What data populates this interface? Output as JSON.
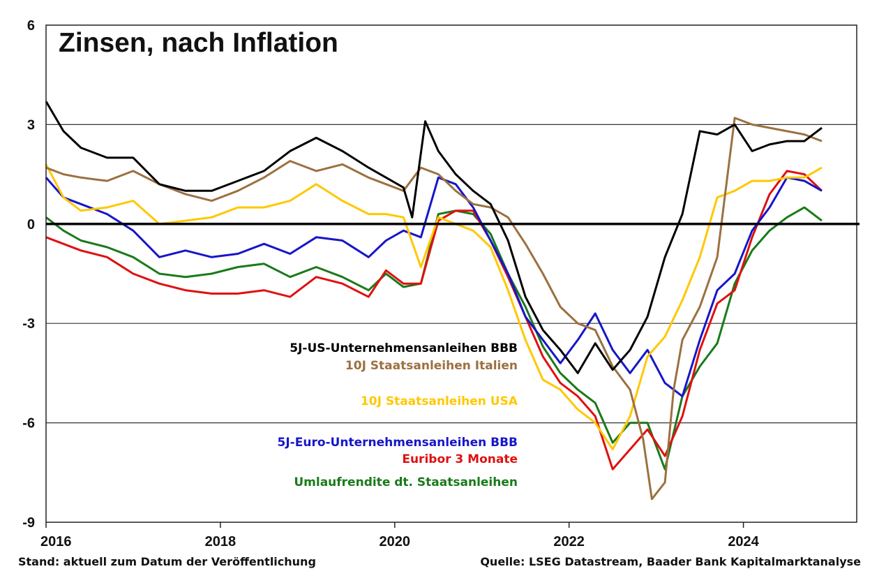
{
  "chart_data": {
    "type": "line",
    "title": "Zinsen, nach Inflation",
    "ylim": [
      -9,
      6
    ],
    "xlim": [
      2016,
      2025.3
    ],
    "yticks": [
      "6",
      "3",
      "0",
      "-3",
      "-6",
      "-9"
    ],
    "ytick_values": [
      6,
      3,
      0,
      -3,
      -6,
      -9
    ],
    "xticks": [
      "2016",
      "2018",
      "2020",
      "2022",
      "2024"
    ],
    "xtick_values": [
      2016,
      2018,
      2020,
      2022,
      2024
    ],
    "grid": "horizontal",
    "series": [
      {
        "name": "5J-US-Unternehmensanleihen BBB",
        "color": "#000000",
        "x": [
          2016.0,
          2016.2,
          2016.4,
          2016.7,
          2017.0,
          2017.3,
          2017.6,
          2017.9,
          2018.2,
          2018.5,
          2018.8,
          2019.1,
          2019.4,
          2019.7,
          2019.9,
          2020.1,
          2020.2,
          2020.35,
          2020.5,
          2020.7,
          2020.9,
          2021.1,
          2021.3,
          2021.5,
          2021.7,
          2021.9,
          2022.1,
          2022.3,
          2022.5,
          2022.7,
          2022.9,
          2023.1,
          2023.3,
          2023.5,
          2023.7,
          2023.9,
          2024.1,
          2024.3,
          2024.5,
          2024.7,
          2024.9
        ],
        "y": [
          3.7,
          2.8,
          2.3,
          2.0,
          2.0,
          1.2,
          1.0,
          1.0,
          1.3,
          1.6,
          2.2,
          2.6,
          2.2,
          1.7,
          1.4,
          1.1,
          0.2,
          3.1,
          2.2,
          1.5,
          1.0,
          0.6,
          -0.5,
          -2.2,
          -3.2,
          -3.8,
          -4.5,
          -3.6,
          -4.4,
          -3.8,
          -2.8,
          -1.0,
          0.3,
          2.8,
          2.7,
          3.0,
          2.2,
          2.4,
          2.5,
          2.5,
          2.9
        ]
      },
      {
        "name": "10J Staatsanleihen Italien",
        "color": "#9c7040",
        "x": [
          2016.0,
          2016.2,
          2016.4,
          2016.7,
          2017.0,
          2017.3,
          2017.6,
          2017.9,
          2018.2,
          2018.5,
          2018.8,
          2019.1,
          2019.4,
          2019.7,
          2019.9,
          2020.1,
          2020.3,
          2020.5,
          2020.7,
          2020.9,
          2021.1,
          2021.3,
          2021.5,
          2021.7,
          2021.9,
          2022.1,
          2022.3,
          2022.5,
          2022.7,
          2022.85,
          2022.95,
          2023.1,
          2023.2,
          2023.3,
          2023.5,
          2023.7,
          2023.9,
          2024.1,
          2024.3,
          2024.5,
          2024.7,
          2024.9
        ],
        "y": [
          1.7,
          1.5,
          1.4,
          1.3,
          1.6,
          1.2,
          0.9,
          0.7,
          1.0,
          1.4,
          1.9,
          1.6,
          1.8,
          1.4,
          1.2,
          1.0,
          1.7,
          1.5,
          1.0,
          0.6,
          0.5,
          0.2,
          -0.6,
          -1.5,
          -2.5,
          -3.0,
          -3.2,
          -4.3,
          -5.0,
          -6.5,
          -8.3,
          -7.8,
          -5.0,
          -3.5,
          -2.5,
          -1.0,
          3.2,
          3.0,
          2.9,
          2.8,
          2.7,
          2.5
        ]
      },
      {
        "name": "10J Staatsanleihen USA",
        "color": "#ffc800",
        "x": [
          2016.0,
          2016.2,
          2016.4,
          2016.7,
          2017.0,
          2017.3,
          2017.6,
          2017.9,
          2018.2,
          2018.5,
          2018.8,
          2019.1,
          2019.4,
          2019.7,
          2019.9,
          2020.1,
          2020.3,
          2020.5,
          2020.7,
          2020.9,
          2021.1,
          2021.3,
          2021.5,
          2021.7,
          2021.9,
          2022.1,
          2022.3,
          2022.5,
          2022.7,
          2022.9,
          2023.1,
          2023.3,
          2023.5,
          2023.7,
          2023.9,
          2024.1,
          2024.3,
          2024.5,
          2024.7,
          2024.9
        ],
        "y": [
          1.8,
          0.8,
          0.4,
          0.5,
          0.7,
          0.0,
          0.1,
          0.2,
          0.5,
          0.5,
          0.7,
          1.2,
          0.7,
          0.3,
          0.3,
          0.2,
          -1.3,
          0.2,
          0.0,
          -0.2,
          -0.7,
          -2.0,
          -3.5,
          -4.7,
          -5.0,
          -5.6,
          -6.0,
          -6.8,
          -5.8,
          -4.0,
          -3.4,
          -2.3,
          -1.0,
          0.8,
          1.0,
          1.3,
          1.3,
          1.4,
          1.4,
          1.7
        ]
      },
      {
        "name": "5J-Euro-Unternehmensanleihen BBB",
        "color": "#1616c8",
        "x": [
          2016.0,
          2016.2,
          2016.4,
          2016.7,
          2017.0,
          2017.3,
          2017.6,
          2017.9,
          2018.2,
          2018.5,
          2018.8,
          2019.1,
          2019.4,
          2019.7,
          2019.9,
          2020.1,
          2020.3,
          2020.5,
          2020.7,
          2020.9,
          2021.1,
          2021.3,
          2021.5,
          2021.7,
          2021.9,
          2022.1,
          2022.3,
          2022.5,
          2022.7,
          2022.9,
          2023.1,
          2023.3,
          2023.5,
          2023.7,
          2023.9,
          2024.1,
          2024.3,
          2024.5,
          2024.7,
          2024.9
        ],
        "y": [
          1.4,
          0.8,
          0.6,
          0.3,
          -0.2,
          -1.0,
          -0.8,
          -1.0,
          -0.9,
          -0.6,
          -0.9,
          -0.4,
          -0.5,
          -1.0,
          -0.5,
          -0.2,
          -0.4,
          1.4,
          1.2,
          0.5,
          -0.5,
          -1.5,
          -2.8,
          -3.5,
          -4.2,
          -3.5,
          -2.7,
          -3.8,
          -4.5,
          -3.8,
          -4.8,
          -5.2,
          -3.5,
          -2.0,
          -1.5,
          -0.2,
          0.5,
          1.4,
          1.3,
          1.0
        ]
      },
      {
        "name": "Euribor 3 Monate",
        "color": "#e01010",
        "x": [
          2016.0,
          2016.2,
          2016.4,
          2016.7,
          2017.0,
          2017.3,
          2017.6,
          2017.9,
          2018.2,
          2018.5,
          2018.8,
          2019.1,
          2019.4,
          2019.7,
          2019.9,
          2020.1,
          2020.3,
          2020.5,
          2020.7,
          2020.9,
          2021.1,
          2021.3,
          2021.5,
          2021.7,
          2021.9,
          2022.1,
          2022.3,
          2022.5,
          2022.7,
          2022.9,
          2023.1,
          2023.3,
          2023.5,
          2023.7,
          2023.9,
          2024.1,
          2024.3,
          2024.5,
          2024.7,
          2024.9
        ],
        "y": [
          -0.4,
          -0.6,
          -0.8,
          -1.0,
          -1.5,
          -1.8,
          -2.0,
          -2.1,
          -2.1,
          -2.0,
          -2.2,
          -1.6,
          -1.8,
          -2.2,
          -1.4,
          -1.8,
          -1.8,
          0.1,
          0.4,
          0.4,
          -0.5,
          -1.6,
          -2.8,
          -4.0,
          -4.8,
          -5.2,
          -5.8,
          -7.4,
          -6.8,
          -6.2,
          -7.0,
          -5.8,
          -3.8,
          -2.4,
          -2.0,
          -0.4,
          0.9,
          1.6,
          1.5,
          1.0
        ]
      },
      {
        "name": "Umlaufrendite dt. Staatsanleihen",
        "color": "#1a7a1a",
        "x": [
          2016.0,
          2016.2,
          2016.4,
          2016.7,
          2017.0,
          2017.3,
          2017.6,
          2017.9,
          2018.2,
          2018.5,
          2018.8,
          2019.1,
          2019.4,
          2019.7,
          2019.9,
          2020.1,
          2020.3,
          2020.5,
          2020.7,
          2020.9,
          2021.1,
          2021.3,
          2021.5,
          2021.7,
          2021.9,
          2022.1,
          2022.3,
          2022.5,
          2022.7,
          2022.9,
          2023.1,
          2023.3,
          2023.5,
          2023.7,
          2023.9,
          2024.1,
          2024.3,
          2024.5,
          2024.7,
          2024.9
        ],
        "y": [
          0.2,
          -0.2,
          -0.5,
          -0.7,
          -1.0,
          -1.5,
          -1.6,
          -1.5,
          -1.3,
          -1.2,
          -1.6,
          -1.3,
          -1.6,
          -2.0,
          -1.5,
          -1.9,
          -1.8,
          0.3,
          0.4,
          0.3,
          -0.3,
          -1.5,
          -2.5,
          -3.7,
          -4.5,
          -5.0,
          -5.4,
          -6.6,
          -6.0,
          -6.0,
          -7.4,
          -5.2,
          -4.3,
          -3.6,
          -1.8,
          -0.8,
          -0.2,
          0.2,
          0.5,
          0.1
        ]
      }
    ]
  },
  "legend": [
    {
      "label": "5J-US-Unternehmensanleihen BBB",
      "color": "#000000"
    },
    {
      "label": "10J Staatsanleihen Italien",
      "color": "#9c7040"
    },
    {
      "label": "10J Staatsanleihen USA",
      "color": "#ffc800"
    },
    {
      "label": "5J-Euro-Unternehmensanleihen BBB",
      "color": "#1616c8"
    },
    {
      "label": "Euribor 3 Monate",
      "color": "#e01010"
    },
    {
      "label": "Umlaufrendite dt. Staatsanleihen",
      "color": "#1a7a1a"
    }
  ],
  "footer": {
    "left": "Stand: aktuell zum Datum der Veröffentlichung",
    "right": "Quelle: LSEG Datastream, Baader Bank Kapitalmarktanalyse"
  }
}
